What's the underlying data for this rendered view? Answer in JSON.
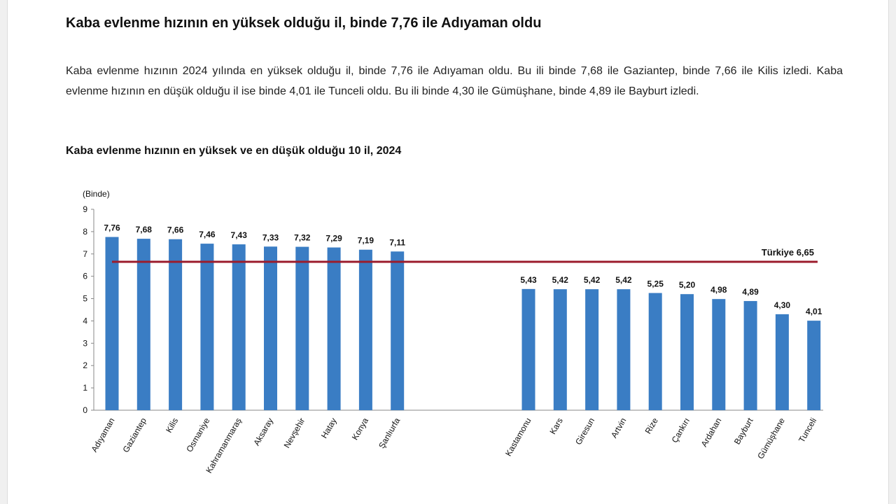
{
  "headline": "Kaba evlenme hızının en yüksek olduğu il, binde 7,76 ile Adıyaman oldu",
  "article_text": "Kaba evlenme hızının 2024 yılında en yüksek olduğu il, binde 7,76 ile Adıyaman oldu. Bu ili binde 7,68 ile Gaziantep, binde 7,66 ile Kilis izledi. Kaba evlenme hızının en düşük olduğu il ise binde 4,01 ile Tunceli oldu. Bu ili binde 4,30 ile Gümüşhane, binde 4,89 ile Bayburt izledi.",
  "chart_title": "Kaba evlenme hızının en yüksek ve en düşük olduğu 10 il, 2024",
  "colors": {
    "bar": "#3a7dc4",
    "reference_line": "#9b1c2c",
    "axis": "#888888"
  },
  "chart_data": {
    "type": "bar",
    "title": "Kaba evlenme hızının en yüksek ve en düşük olduğu 10 il, 2024",
    "unit_label": "(Binde)",
    "ylim": [
      0,
      9
    ],
    "yticks": [
      "0",
      "1",
      "2",
      "3",
      "4",
      "5",
      "6",
      "7",
      "8",
      "9"
    ],
    "grid": false,
    "groups": [
      {
        "categories": [
          "Adıyaman",
          "Gaziantep",
          "Kilis",
          "Osmaniye",
          "Kahramanmaraş",
          "Aksaray",
          "Nevşehir",
          "Hatay",
          "Konya",
          "Şanlıurfa"
        ],
        "values": [
          7.76,
          7.68,
          7.66,
          7.46,
          7.43,
          7.33,
          7.32,
          7.29,
          7.19,
          7.11
        ],
        "labels": [
          "7,76",
          "7,68",
          "7,66",
          "7,46",
          "7,43",
          "7,33",
          "7,32",
          "7,29",
          "7,19",
          "7,11"
        ]
      },
      {
        "categories": [
          "Kastamonu",
          "Kars",
          "Giresun",
          "Artvin",
          "Rize",
          "Çankırı",
          "Ardahan",
          "Bayburt",
          "Gümüşhane",
          "Tunceli"
        ],
        "values": [
          5.43,
          5.42,
          5.42,
          5.42,
          5.25,
          5.2,
          4.98,
          4.89,
          4.3,
          4.01
        ],
        "labels": [
          "5,43",
          "5,42",
          "5,42",
          "5,42",
          "5,25",
          "5,20",
          "4,98",
          "4,89",
          "4,30",
          "4,01"
        ]
      }
    ],
    "reference_line": {
      "value": 6.65,
      "label": "Türkiye  6,65"
    }
  }
}
